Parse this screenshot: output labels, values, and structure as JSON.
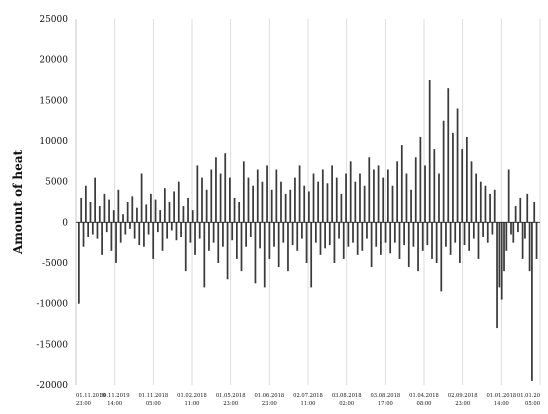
{
  "chart_data": {
    "type": "bar",
    "title": "",
    "xlabel": "",
    "ylabel": "Amount of heat",
    "ylim": [
      -20000,
      25000
    ],
    "yticks": [
      25000,
      20000,
      15000,
      10000,
      5000,
      0,
      -5000,
      -10000,
      -15000,
      -20000
    ],
    "grid": "vertical",
    "legend": "none",
    "bar_color": "#3a3a3a",
    "x_tick_labels": [
      {
        "date": "01.11.2019",
        "time": "23:00"
      },
      {
        "date": "30.11.2019",
        "time": "14:00"
      },
      {
        "date": "01.11.2018",
        "time": "05:00"
      },
      {
        "date": "01.02.2018",
        "time": "11:00"
      },
      {
        "date": "01.05.2018",
        "time": "23:00"
      },
      {
        "date": "01.06.2018",
        "time": "23:00"
      },
      {
        "date": "02.07.2018",
        "time": "11:00"
      },
      {
        "date": "03.08.2018",
        "time": "02:00"
      },
      {
        "date": "03.08.2018",
        "time": "17:00"
      },
      {
        "date": "01.04.2018",
        "time": "08:00"
      },
      {
        "date": "02.09.2018",
        "time": "23:00"
      },
      {
        "date": "01.01.2018",
        "time": "14:00"
      },
      {
        "date": "01.01.20",
        "time": "05:00"
      }
    ],
    "series": [
      {
        "values": [
          -10000,
          3000,
          -3000,
          4500,
          -1800,
          2500,
          -1500,
          5500,
          -2000,
          2000,
          -4000,
          3500,
          -1200,
          2800,
          -3500,
          1500,
          -5000,
          4000,
          -2500,
          1000,
          -1500,
          2500,
          -800,
          3200,
          -2000,
          1800,
          -2800,
          6000,
          -3000,
          2200,
          -1500,
          3500,
          -4500,
          2800,
          -1200,
          1500,
          -3500,
          4200,
          -2000,
          2500,
          -1000,
          3800,
          -2200,
          5000,
          -1800,
          2000,
          -6000,
          3000,
          -2500,
          1500,
          -4000,
          7000,
          -2000,
          5500,
          -8000,
          4000,
          -3500,
          6500,
          -2500,
          8000,
          -5000,
          6000,
          -3000,
          8500,
          -7000,
          5500,
          -2200,
          3000,
          -4500,
          2500,
          -6000,
          7500,
          -3000,
          5500,
          -1800,
          4500,
          -7500,
          6500,
          -3200,
          5000,
          -8000,
          7000,
          -4500,
          4000,
          -3000,
          6500,
          -5500,
          5000,
          -2500,
          3500,
          -6000,
          4000,
          -2800,
          5500,
          -3500,
          7000,
          -2000,
          4500,
          -5000,
          3800,
          -8000,
          6000,
          -2500,
          5000,
          -4000,
          6500,
          -3200,
          4800,
          -2800,
          7000,
          -5000,
          5500,
          -2000,
          3500,
          -4500,
          6000,
          -3000,
          7500,
          -2500,
          5000,
          -4000,
          6000,
          -3500,
          4500,
          -2000,
          8000,
          -5500,
          6500,
          -3000,
          7000,
          -4000,
          5500,
          -2500,
          6500,
          -3800,
          4500,
          -2500,
          7500,
          -4500,
          9500,
          -2800,
          6000,
          -5500,
          4000,
          -3000,
          8000,
          -6000,
          10500,
          -3500,
          7000,
          -2800,
          17500,
          -4500,
          9000,
          -5000,
          6000,
          -8500,
          12500,
          -3000,
          16500,
          -4000,
          11000,
          -2500,
          14000,
          -5000,
          9000,
          -2800,
          10500,
          -3500,
          7500,
          -2000,
          6000,
          -4500,
          5000,
          -1800,
          4500,
          -2500,
          3500,
          -1500,
          4000,
          -13000,
          -8000,
          -9500,
          -6000,
          -3500,
          6500,
          -1500,
          -2500,
          2000,
          -1200,
          3000,
          -4500,
          -2000,
          3500,
          -6000,
          -19500,
          2500,
          -4500
        ]
      }
    ]
  }
}
